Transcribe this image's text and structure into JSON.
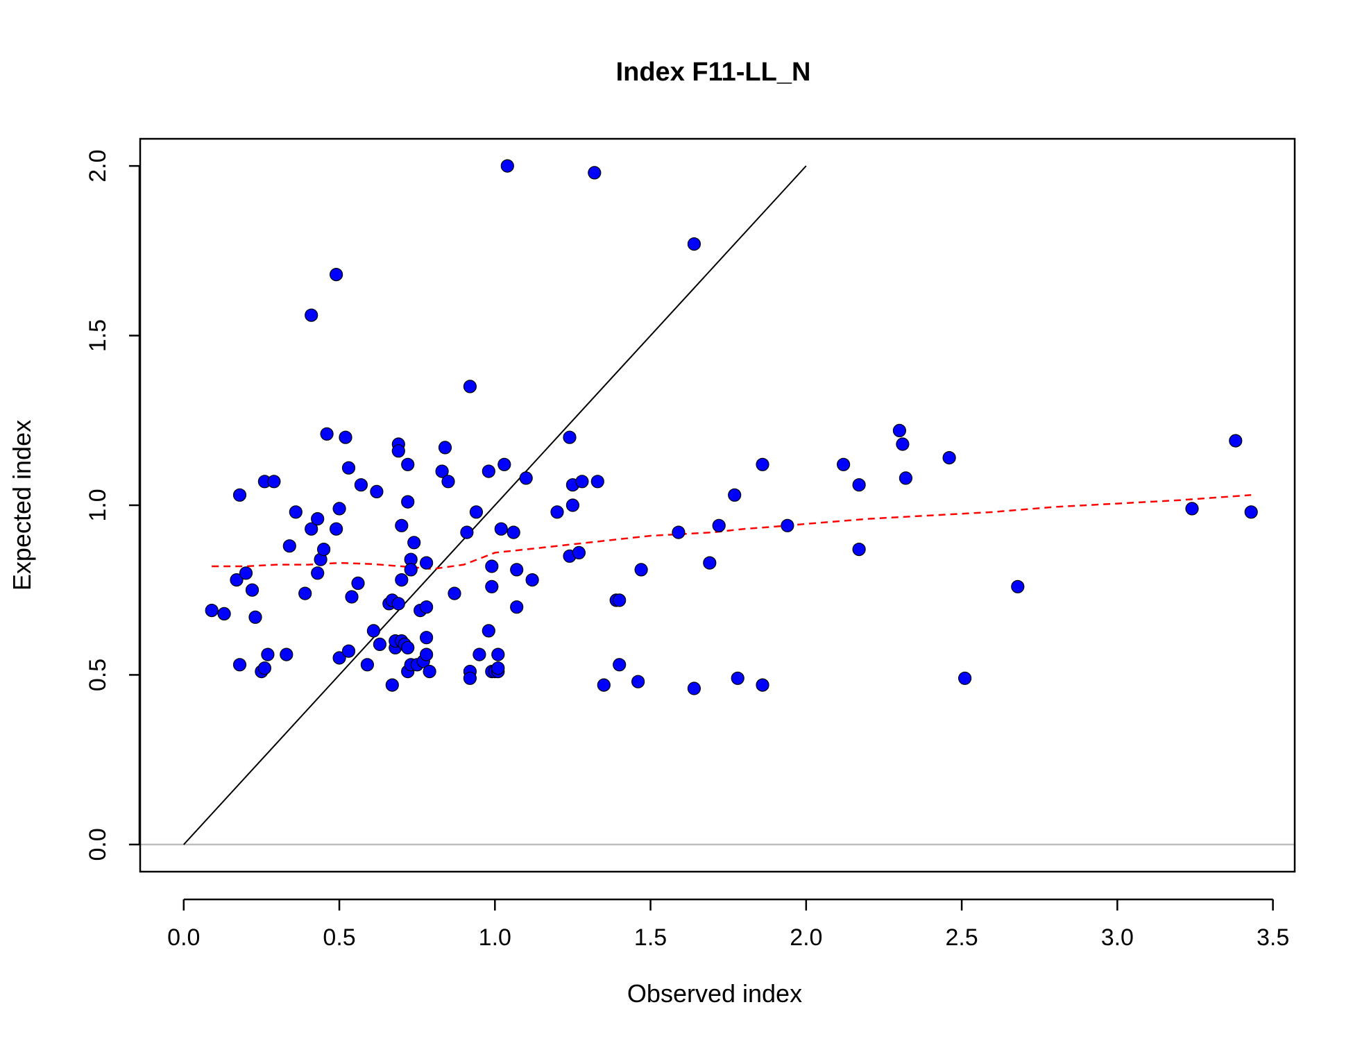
{
  "chart_data": {
    "type": "scatter",
    "title": "Index F11-LL_N",
    "xlabel": "Observed index",
    "ylabel": "Expected index",
    "xlim": [
      -0.14,
      3.57
    ],
    "ylim": [
      -0.08,
      2.08
    ],
    "x_ticks": [
      "0.0",
      "0.5",
      "1.0",
      "1.5",
      "2.0",
      "2.5",
      "3.0",
      "3.5"
    ],
    "y_ticks": [
      "0.0",
      "0.5",
      "1.0",
      "1.5",
      "2.0"
    ],
    "grid": false,
    "legend": "none",
    "colors": {
      "points": "#0000ff",
      "point_outline": "#000000",
      "identity_line": "#000000",
      "smooth_line": "#ff0000",
      "zero_line": "#bebebe"
    },
    "identity_line": {
      "x": [
        0,
        2
      ],
      "y": [
        0,
        2
      ]
    },
    "zero_line": {
      "y": 0
    },
    "smooth_line": {
      "x": [
        0.09,
        0.2,
        0.3,
        0.4,
        0.5,
        0.6,
        0.7,
        0.8,
        0.9,
        1.0,
        1.1,
        1.2,
        1.3,
        1.4,
        1.5,
        1.6,
        1.7,
        1.8,
        1.9,
        2.0,
        2.2,
        2.4,
        2.6,
        2.8,
        3.0,
        3.2,
        3.43
      ],
      "y": [
        0.82,
        0.82,
        0.825,
        0.825,
        0.83,
        0.827,
        0.82,
        0.812,
        0.825,
        0.86,
        0.87,
        0.88,
        0.89,
        0.9,
        0.91,
        0.915,
        0.92,
        0.93,
        0.937,
        0.945,
        0.96,
        0.97,
        0.98,
        0.995,
        1.005,
        1.015,
        1.03
      ]
    },
    "points": [
      {
        "x": 0.09,
        "y": 0.69
      },
      {
        "x": 0.13,
        "y": 0.68
      },
      {
        "x": 0.17,
        "y": 0.78
      },
      {
        "x": 0.18,
        "y": 1.03
      },
      {
        "x": 0.18,
        "y": 0.53
      },
      {
        "x": 0.2,
        "y": 0.8
      },
      {
        "x": 0.22,
        "y": 0.75
      },
      {
        "x": 0.23,
        "y": 0.67
      },
      {
        "x": 0.25,
        "y": 0.51
      },
      {
        "x": 0.26,
        "y": 0.52
      },
      {
        "x": 0.26,
        "y": 1.07
      },
      {
        "x": 0.27,
        "y": 0.56
      },
      {
        "x": 0.29,
        "y": 1.07
      },
      {
        "x": 0.33,
        "y": 0.56
      },
      {
        "x": 0.34,
        "y": 0.88
      },
      {
        "x": 0.36,
        "y": 0.98
      },
      {
        "x": 0.39,
        "y": 0.74
      },
      {
        "x": 0.41,
        "y": 0.93
      },
      {
        "x": 0.41,
        "y": 1.56
      },
      {
        "x": 0.43,
        "y": 0.8
      },
      {
        "x": 0.43,
        "y": 0.96
      },
      {
        "x": 0.44,
        "y": 0.84
      },
      {
        "x": 0.45,
        "y": 0.87
      },
      {
        "x": 0.46,
        "y": 1.21
      },
      {
        "x": 0.49,
        "y": 1.68
      },
      {
        "x": 0.49,
        "y": 0.93
      },
      {
        "x": 0.5,
        "y": 0.99
      },
      {
        "x": 0.5,
        "y": 0.55
      },
      {
        "x": 0.52,
        "y": 1.2
      },
      {
        "x": 0.53,
        "y": 1.11
      },
      {
        "x": 0.53,
        "y": 0.57
      },
      {
        "x": 0.54,
        "y": 0.73
      },
      {
        "x": 0.56,
        "y": 0.77
      },
      {
        "x": 0.57,
        "y": 1.06
      },
      {
        "x": 0.59,
        "y": 0.53
      },
      {
        "x": 0.61,
        "y": 0.63
      },
      {
        "x": 0.62,
        "y": 1.04
      },
      {
        "x": 0.63,
        "y": 0.59
      },
      {
        "x": 0.66,
        "y": 0.71
      },
      {
        "x": 0.67,
        "y": 0.72
      },
      {
        "x": 0.67,
        "y": 0.47
      },
      {
        "x": 0.68,
        "y": 0.58
      },
      {
        "x": 0.68,
        "y": 0.6
      },
      {
        "x": 0.69,
        "y": 0.71
      },
      {
        "x": 0.69,
        "y": 1.18
      },
      {
        "x": 0.69,
        "y": 1.16
      },
      {
        "x": 0.7,
        "y": 0.78
      },
      {
        "x": 0.7,
        "y": 0.94
      },
      {
        "x": 0.7,
        "y": 0.6
      },
      {
        "x": 0.71,
        "y": 0.59
      },
      {
        "x": 0.72,
        "y": 1.01
      },
      {
        "x": 0.72,
        "y": 0.51
      },
      {
        "x": 0.72,
        "y": 1.12
      },
      {
        "x": 0.72,
        "y": 0.58
      },
      {
        "x": 0.73,
        "y": 0.84
      },
      {
        "x": 0.73,
        "y": 0.81
      },
      {
        "x": 0.73,
        "y": 0.53
      },
      {
        "x": 0.74,
        "y": 0.89
      },
      {
        "x": 0.75,
        "y": 0.53
      },
      {
        "x": 0.76,
        "y": 0.69
      },
      {
        "x": 0.77,
        "y": 0.54
      },
      {
        "x": 0.78,
        "y": 0.83
      },
      {
        "x": 0.78,
        "y": 0.7
      },
      {
        "x": 0.78,
        "y": 0.56
      },
      {
        "x": 0.78,
        "y": 0.61
      },
      {
        "x": 0.79,
        "y": 0.51
      },
      {
        "x": 0.83,
        "y": 1.1
      },
      {
        "x": 0.84,
        "y": 1.17
      },
      {
        "x": 0.85,
        "y": 1.07
      },
      {
        "x": 0.87,
        "y": 0.74
      },
      {
        "x": 0.91,
        "y": 0.92
      },
      {
        "x": 0.92,
        "y": 1.35
      },
      {
        "x": 0.92,
        "y": 0.51
      },
      {
        "x": 0.92,
        "y": 0.49
      },
      {
        "x": 0.94,
        "y": 0.98
      },
      {
        "x": 0.95,
        "y": 0.56
      },
      {
        "x": 0.98,
        "y": 1.1
      },
      {
        "x": 0.98,
        "y": 0.63
      },
      {
        "x": 0.99,
        "y": 0.82
      },
      {
        "x": 0.99,
        "y": 0.76
      },
      {
        "x": 0.99,
        "y": 0.51
      },
      {
        "x": 1.0,
        "y": 0.51
      },
      {
        "x": 1.01,
        "y": 0.51
      },
      {
        "x": 1.01,
        "y": 0.52
      },
      {
        "x": 1.01,
        "y": 0.56
      },
      {
        "x": 1.02,
        "y": 0.93
      },
      {
        "x": 1.03,
        "y": 1.12
      },
      {
        "x": 1.04,
        "y": 2.0
      },
      {
        "x": 1.06,
        "y": 0.92
      },
      {
        "x": 1.07,
        "y": 0.7
      },
      {
        "x": 1.07,
        "y": 0.81
      },
      {
        "x": 1.1,
        "y": 1.08
      },
      {
        "x": 1.12,
        "y": 0.78
      },
      {
        "x": 1.2,
        "y": 0.98
      },
      {
        "x": 1.24,
        "y": 1.2
      },
      {
        "x": 1.24,
        "y": 0.85
      },
      {
        "x": 1.25,
        "y": 1.06
      },
      {
        "x": 1.25,
        "y": 1.0
      },
      {
        "x": 1.27,
        "y": 0.86
      },
      {
        "x": 1.28,
        "y": 1.07
      },
      {
        "x": 1.32,
        "y": 1.98
      },
      {
        "x": 1.33,
        "y": 1.07
      },
      {
        "x": 1.35,
        "y": 0.47
      },
      {
        "x": 1.39,
        "y": 0.72
      },
      {
        "x": 1.4,
        "y": 0.72
      },
      {
        "x": 1.4,
        "y": 0.53
      },
      {
        "x": 1.46,
        "y": 0.48
      },
      {
        "x": 1.47,
        "y": 0.81
      },
      {
        "x": 1.59,
        "y": 0.92
      },
      {
        "x": 1.64,
        "y": 1.77
      },
      {
        "x": 1.64,
        "y": 0.46
      },
      {
        "x": 1.69,
        "y": 0.83
      },
      {
        "x": 1.72,
        "y": 0.94
      },
      {
        "x": 1.77,
        "y": 1.03
      },
      {
        "x": 1.78,
        "y": 0.49
      },
      {
        "x": 1.86,
        "y": 1.12
      },
      {
        "x": 1.86,
        "y": 0.47
      },
      {
        "x": 1.94,
        "y": 0.94
      },
      {
        "x": 2.12,
        "y": 1.12
      },
      {
        "x": 2.17,
        "y": 0.87
      },
      {
        "x": 2.17,
        "y": 1.06
      },
      {
        "x": 2.3,
        "y": 1.22
      },
      {
        "x": 2.31,
        "y": 1.18
      },
      {
        "x": 2.32,
        "y": 1.08
      },
      {
        "x": 2.46,
        "y": 1.14
      },
      {
        "x": 2.51,
        "y": 0.49
      },
      {
        "x": 2.68,
        "y": 0.76
      },
      {
        "x": 3.24,
        "y": 0.99
      },
      {
        "x": 3.38,
        "y": 1.19
      },
      {
        "x": 3.43,
        "y": 0.98
      }
    ]
  }
}
